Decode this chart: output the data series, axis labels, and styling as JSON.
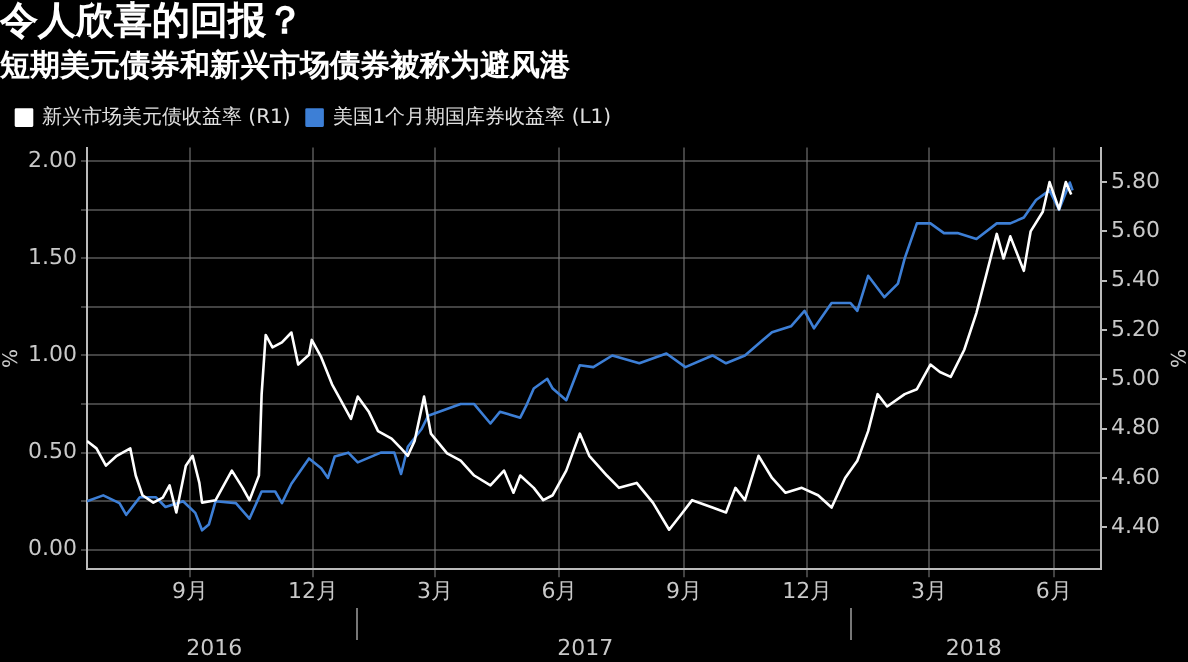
{
  "chart_data": {
    "type": "line",
    "title": "令人欣喜的回报？",
    "subtitle": "短期美元债券和新兴市场债券被称为避风港",
    "ylabel": "%",
    "y2label": "%",
    "legend": "top left",
    "grid": true,
    "xlim": [
      "2016-06-17",
      "2018-07-06"
    ],
    "xticks": [
      {
        "value": "2016-09-01",
        "label": "9月"
      },
      {
        "value": "2016-12-01",
        "label": "12月"
      },
      {
        "value": "2017-03-01",
        "label": "3月"
      },
      {
        "value": "2017-06-01",
        "label": "6月"
      },
      {
        "value": "2017-09-01",
        "label": "9月"
      },
      {
        "value": "2017-12-01",
        "label": "12月"
      },
      {
        "value": "2018-03-01",
        "label": "3月"
      },
      {
        "value": "2018-06-01",
        "label": "6月"
      }
    ],
    "x2lim": [
      "2016-06-17",
      "2018-07-06"
    ],
    "x2ticks": [
      {
        "value": "2016-09-19",
        "label": "2016"
      },
      {
        "value": "2017-06-20",
        "label": "2017"
      },
      {
        "value": "2018-04-03",
        "label": "2018"
      }
    ],
    "ylim": [
      -0.1,
      2.07
    ],
    "yticks": [
      {
        "value": 0,
        "label": "0.00"
      },
      {
        "value": 0.25,
        "label": null
      },
      {
        "value": 0.5,
        "label": "0.50"
      },
      {
        "value": 0.75,
        "label": null
      },
      {
        "value": 1,
        "label": "1.00"
      },
      {
        "value": 1.25,
        "label": null
      },
      {
        "value": 1.5,
        "label": "1.50"
      },
      {
        "value": 1.75,
        "label": null
      },
      {
        "value": 2,
        "label": "2.00"
      }
    ],
    "y2lim": [
      4.23,
      5.94
    ],
    "y2ticks": [
      {
        "value": 4.4,
        "label": "4.40"
      },
      {
        "value": 4.6,
        "label": "4.60"
      },
      {
        "value": 4.8,
        "label": "4.80"
      },
      {
        "value": 5,
        "label": "5.00"
      },
      {
        "value": 5.2,
        "label": "5.20"
      },
      {
        "value": 5.4,
        "label": "5.40"
      },
      {
        "value": 5.6,
        "label": "5.60"
      },
      {
        "value": 5.8,
        "label": "5.80"
      }
    ],
    "series": [
      {
        "name": "新兴市场美元债收益率 (R1)",
        "color": "#ffffff",
        "axis": "y2",
        "x": [
          "2016-06-17",
          "2016-06-24",
          "2016-07-01",
          "2016-07-09",
          "2016-07-19",
          "2016-07-23",
          "2016-07-28",
          "2016-08-05",
          "2016-08-12",
          "2016-08-17",
          "2016-08-22",
          "2016-08-29",
          "2016-09-03",
          "2016-09-08",
          "2016-09-10",
          "2016-09-20",
          "2016-09-27",
          "2016-10-02",
          "2016-10-10",
          "2016-10-15",
          "2016-10-22",
          "2016-10-24",
          "2016-10-27",
          "2016-11-01",
          "2016-11-08",
          "2016-11-15",
          "2016-11-20",
          "2016-11-28",
          "2016-11-30",
          "2016-12-07",
          "2016-12-15",
          "2016-12-20",
          "2016-12-29",
          "2017-01-03",
          "2017-01-11",
          "2017-01-18",
          "2017-01-28",
          "2017-02-04",
          "2017-02-09",
          "2017-02-14",
          "2017-02-21",
          "2017-02-26",
          "2017-03-10",
          "2017-03-20",
          "2017-03-30",
          "2017-04-11",
          "2017-04-21",
          "2017-04-28",
          "2017-05-03",
          "2017-05-13",
          "2017-05-20",
          "2017-05-27",
          "2017-06-06",
          "2017-06-16",
          "2017-06-23",
          "2017-07-06",
          "2017-07-15",
          "2017-07-28",
          "2017-08-09",
          "2017-08-21",
          "2017-08-31",
          "2017-09-07",
          "2017-09-22",
          "2017-10-02",
          "2017-10-09",
          "2017-10-16",
          "2017-10-26",
          "2017-11-05",
          "2017-11-15",
          "2017-11-27",
          "2017-12-09",
          "2017-12-19",
          "2017-12-29",
          "2018-01-07",
          "2018-01-15",
          "2018-01-22",
          "2018-01-29",
          "2018-02-11",
          "2018-02-20",
          "2018-03-02",
          "2018-03-09",
          "2018-03-17",
          "2018-03-27",
          "2018-04-05",
          "2018-04-13",
          "2018-04-20",
          "2018-04-25",
          "2018-04-30",
          "2018-05-10",
          "2018-05-15",
          "2018-05-24",
          "2018-05-29",
          "2018-06-05",
          "2018-06-10",
          "2018-06-14"
        ],
        "values": [
          4.75,
          4.72,
          4.65,
          4.69,
          4.72,
          4.61,
          4.53,
          4.5,
          4.52,
          4.57,
          4.46,
          4.65,
          4.69,
          4.58,
          4.5,
          4.51,
          4.58,
          4.63,
          4.56,
          4.51,
          4.61,
          4.94,
          5.18,
          5.13,
          5.15,
          5.19,
          5.06,
          5.1,
          5.16,
          5.09,
          4.98,
          4.93,
          4.84,
          4.93,
          4.87,
          4.79,
          4.76,
          4.72,
          4.69,
          4.75,
          4.93,
          4.78,
          4.7,
          4.67,
          4.61,
          4.57,
          4.63,
          4.54,
          4.61,
          4.56,
          4.51,
          4.53,
          4.63,
          4.78,
          4.69,
          4.61,
          4.56,
          4.58,
          4.5,
          4.39,
          4.46,
          4.51,
          4.48,
          4.46,
          4.56,
          4.51,
          4.69,
          4.6,
          4.54,
          4.56,
          4.53,
          4.48,
          4.6,
          4.67,
          4.79,
          4.94,
          4.89,
          4.94,
          4.96,
          5.06,
          5.03,
          5.01,
          5.12,
          5.27,
          5.44,
          5.59,
          5.49,
          5.58,
          5.44,
          5.6,
          5.68,
          5.8,
          5.69,
          5.8,
          5.75
        ]
      },
      {
        "name": "美国1个月期国库券收益率 (L1)",
        "color": "#3d7fd6",
        "x": [
          "2016-06-17",
          "2016-06-29",
          "2016-07-11",
          "2016-07-16",
          "2016-07-26",
          "2016-08-07",
          "2016-08-14",
          "2016-08-27",
          "2016-09-05",
          "2016-09-10",
          "2016-09-15",
          "2016-09-20",
          "2016-10-05",
          "2016-10-15",
          "2016-10-24",
          "2016-11-03",
          "2016-11-08",
          "2016-11-15",
          "2016-11-28",
          "2016-12-07",
          "2016-12-12",
          "2016-12-17",
          "2016-12-27",
          "2017-01-03",
          "2017-01-20",
          "2017-01-30",
          "2017-02-04",
          "2017-02-09",
          "2017-02-19",
          "2017-02-24",
          "2017-03-20",
          "2017-03-30",
          "2017-04-11",
          "2017-04-18",
          "2017-05-03",
          "2017-05-08",
          "2017-05-13",
          "2017-05-23",
          "2017-05-27",
          "2017-06-06",
          "2017-06-16",
          "2017-06-26",
          "2017-07-10",
          "2017-07-30",
          "2017-08-19",
          "2017-09-02",
          "2017-09-22",
          "2017-10-02",
          "2017-10-16",
          "2017-11-05",
          "2017-11-19",
          "2017-11-29",
          "2017-12-06",
          "2017-12-19",
          "2018-01-02",
          "2018-01-07",
          "2018-01-15",
          "2018-01-27",
          "2018-02-06",
          "2018-02-11",
          "2018-02-20",
          "2018-03-02",
          "2018-03-12",
          "2018-03-22",
          "2018-04-05",
          "2018-04-20",
          "2018-04-30",
          "2018-05-10",
          "2018-05-19",
          "2018-05-29",
          "2018-06-05",
          "2018-06-13",
          "2018-06-15"
        ],
        "values": [
          0.25,
          0.28,
          0.24,
          0.18,
          0.27,
          0.27,
          0.22,
          0.25,
          0.19,
          0.1,
          0.13,
          0.25,
          0.24,
          0.16,
          0.3,
          0.3,
          0.24,
          0.34,
          0.47,
          0.42,
          0.37,
          0.48,
          0.5,
          0.45,
          0.5,
          0.5,
          0.39,
          0.53,
          0.62,
          0.69,
          0.75,
          0.75,
          0.65,
          0.71,
          0.68,
          0.75,
          0.83,
          0.88,
          0.83,
          0.77,
          0.95,
          0.94,
          1.0,
          0.96,
          1.01,
          0.94,
          1.0,
          0.96,
          1.0,
          1.12,
          1.15,
          1.23,
          1.14,
          1.27,
          1.27,
          1.23,
          1.41,
          1.3,
          1.37,
          1.5,
          1.68,
          1.68,
          1.63,
          1.63,
          1.6,
          1.68,
          1.68,
          1.71,
          1.8,
          1.85,
          1.75,
          1.89,
          1.85
        ]
      }
    ]
  }
}
